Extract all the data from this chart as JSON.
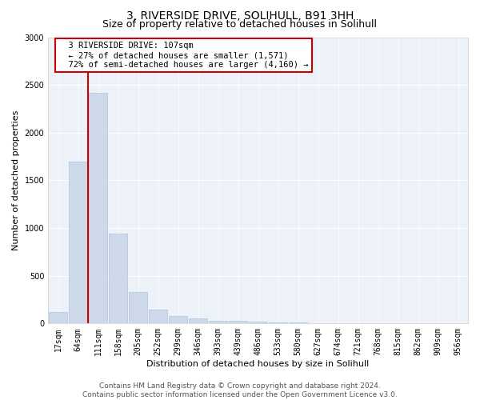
{
  "title": "3, RIVERSIDE DRIVE, SOLIHULL, B91 3HH",
  "subtitle": "Size of property relative to detached houses in Solihull",
  "xlabel": "Distribution of detached houses by size in Solihull",
  "ylabel": "Number of detached properties",
  "bar_color": "#cdd9ea",
  "bar_edge_color": "#b0c4de",
  "categories": [
    "17sqm",
    "64sqm",
    "111sqm",
    "158sqm",
    "205sqm",
    "252sqm",
    "299sqm",
    "346sqm",
    "393sqm",
    "439sqm",
    "486sqm",
    "533sqm",
    "580sqm",
    "627sqm",
    "674sqm",
    "721sqm",
    "768sqm",
    "815sqm",
    "862sqm",
    "909sqm",
    "956sqm"
  ],
  "values": [
    120,
    1700,
    2420,
    940,
    330,
    145,
    80,
    50,
    30,
    25,
    20,
    15,
    10,
    5,
    4,
    3,
    2,
    2,
    1,
    1,
    1
  ],
  "ylim": [
    0,
    3000
  ],
  "yticks": [
    0,
    500,
    1000,
    1500,
    2000,
    2500,
    3000
  ],
  "property_line_x": 1.5,
  "annotation_text": "  3 RIVERSIDE DRIVE: 107sqm\n  ← 27% of detached houses are smaller (1,571)\n  72% of semi-detached houses are larger (4,160) →",
  "annotation_box_color": "#ffffff",
  "annotation_box_edge_color": "#cc0000",
  "annotation_text_color": "#000000",
  "vline_color": "#cc0000",
  "footer_text": "Contains HM Land Registry data © Crown copyright and database right 2024.\nContains public sector information licensed under the Open Government Licence v3.0.",
  "background_color": "#edf1f8",
  "grid_color": "#ffffff",
  "title_fontsize": 10,
  "subtitle_fontsize": 9,
  "axis_label_fontsize": 8,
  "tick_fontsize": 7,
  "footer_fontsize": 6.5,
  "annotation_fontsize": 7.5
}
